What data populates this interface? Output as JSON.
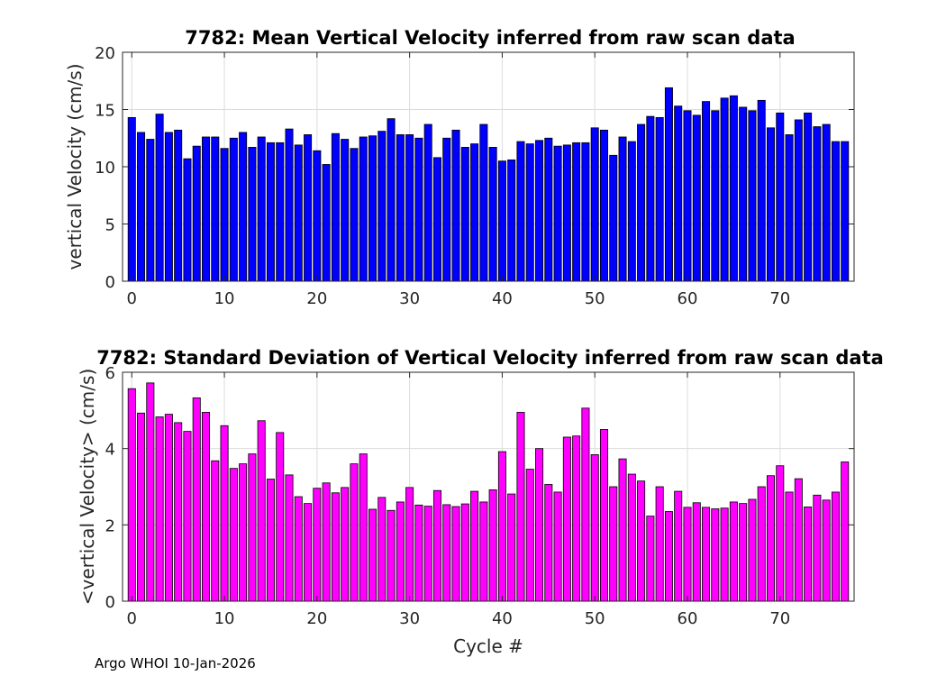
{
  "chart_data": [
    {
      "type": "bar",
      "title": "7782: Mean Vertical Velocity inferred from raw scan data",
      "xlabel": "",
      "ylabel": "vertical Velocity (cm/s)",
      "xlim": [
        -1,
        78
      ],
      "ylim": [
        0,
        20
      ],
      "xticks": [
        0,
        10,
        20,
        30,
        40,
        50,
        60,
        70
      ],
      "yticks": [
        0,
        5,
        10,
        15,
        20
      ],
      "grid": true,
      "color": "#0000ff",
      "x": [
        0,
        1,
        2,
        3,
        4,
        5,
        6,
        7,
        8,
        9,
        10,
        11,
        12,
        13,
        14,
        15,
        16,
        17,
        18,
        19,
        20,
        21,
        22,
        23,
        24,
        25,
        26,
        27,
        28,
        29,
        30,
        31,
        32,
        33,
        34,
        35,
        36,
        37,
        38,
        39,
        40,
        41,
        42,
        43,
        44,
        45,
        46,
        47,
        48,
        49,
        50,
        51,
        52,
        53,
        54,
        55,
        56,
        57,
        58,
        59,
        60,
        61,
        62,
        63,
        64,
        65,
        66,
        67,
        68,
        69,
        70,
        71,
        72,
        73,
        74,
        75,
        76,
        77
      ],
      "values": [
        14.3,
        13.0,
        12.4,
        14.6,
        13.0,
        13.2,
        10.7,
        11.8,
        12.6,
        12.6,
        11.6,
        12.5,
        13.0,
        11.7,
        12.6,
        12.1,
        12.1,
        13.3,
        11.9,
        12.8,
        11.4,
        10.2,
        12.9,
        12.4,
        11.6,
        12.6,
        12.7,
        13.1,
        14.2,
        12.8,
        12.8,
        12.5,
        13.7,
        10.8,
        12.5,
        13.2,
        11.7,
        12.0,
        13.7,
        11.7,
        10.5,
        10.6,
        12.2,
        12.0,
        12.3,
        12.5,
        11.8,
        11.9,
        12.1,
        12.1,
        13.4,
        13.2,
        11.0,
        12.6,
        12.2,
        13.7,
        14.4,
        14.3,
        16.9,
        15.3,
        14.9,
        14.5,
        15.7,
        14.9,
        16.0,
        16.2,
        15.2,
        14.9,
        15.8,
        13.4,
        14.7,
        12.8,
        14.1,
        14.7,
        13.5,
        13.7,
        12.2,
        12.2
      ]
    },
    {
      "type": "bar",
      "title": "7782: Standard Deviation of Vertical Velocity inferred from raw scan data",
      "xlabel": "Cycle #",
      "ylabel": "<vertical Velocity> (cm/s)",
      "xlim": [
        -1,
        78
      ],
      "ylim": [
        0,
        6
      ],
      "xticks": [
        0,
        10,
        20,
        30,
        40,
        50,
        60,
        70
      ],
      "yticks": [
        0,
        2,
        4,
        6
      ],
      "grid": true,
      "color": "#ff00ff",
      "x": [
        0,
        1,
        2,
        3,
        4,
        5,
        6,
        7,
        8,
        9,
        10,
        11,
        12,
        13,
        14,
        15,
        16,
        17,
        18,
        19,
        20,
        21,
        22,
        23,
        24,
        25,
        26,
        27,
        28,
        29,
        30,
        31,
        32,
        33,
        34,
        35,
        36,
        37,
        38,
        39,
        40,
        41,
        42,
        43,
        44,
        45,
        46,
        47,
        48,
        49,
        50,
        51,
        52,
        53,
        54,
        55,
        56,
        57,
        58,
        59,
        60,
        61,
        62,
        63,
        64,
        65,
        66,
        67,
        68,
        69,
        70,
        71,
        72,
        73,
        74,
        75,
        76,
        77
      ],
      "values": [
        5.57,
        4.93,
        5.72,
        4.83,
        4.9,
        4.68,
        4.45,
        5.33,
        4.95,
        3.68,
        4.6,
        3.48,
        3.6,
        3.86,
        4.73,
        3.2,
        4.42,
        3.31,
        2.74,
        2.56,
        2.96,
        3.1,
        2.84,
        2.98,
        3.6,
        3.86,
        2.41,
        2.72,
        2.38,
        2.6,
        2.98,
        2.52,
        2.49,
        2.9,
        2.53,
        2.48,
        2.55,
        2.88,
        2.6,
        2.92,
        3.92,
        2.81,
        4.95,
        3.46,
        4.0,
        3.06,
        2.86,
        4.3,
        4.33,
        5.06,
        3.84,
        4.5,
        3.0,
        3.73,
        3.33,
        3.15,
        2.23,
        3.0,
        2.35,
        2.88,
        2.46,
        2.58,
        2.46,
        2.42,
        2.44,
        2.6,
        2.56,
        2.67,
        3.0,
        3.29,
        3.55,
        2.86,
        3.21,
        2.47,
        2.78,
        2.65,
        2.86,
        3.65
      ]
    }
  ],
  "footer": "Argo WHOI 10-Jan-2026"
}
